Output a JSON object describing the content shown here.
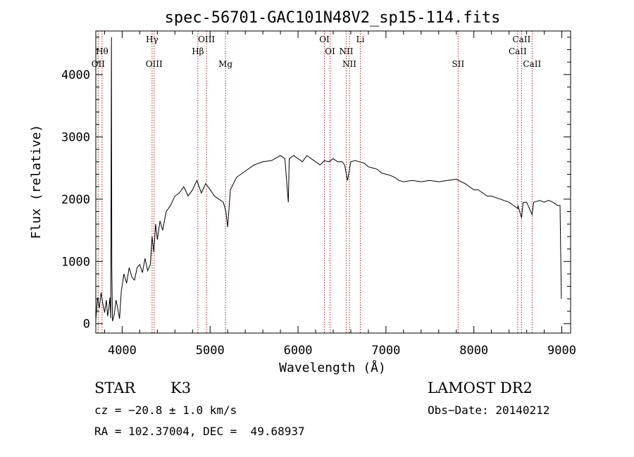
{
  "chart_data": {
    "type": "line",
    "title": "spec-56701-GAC101N48V2_sp15-114.fits",
    "xlabel": "Wavelength (Å)",
    "ylabel": "Flux (relative)",
    "xlim": [
      3700,
      9100
    ],
    "ylim": [
      -150,
      4700
    ],
    "x_ticks": [
      4000,
      5000,
      6000,
      7000,
      8000,
      9000
    ],
    "y_ticks": [
      0,
      1000,
      2000,
      3000,
      4000
    ],
    "grid": false,
    "line_color": "#000000",
    "marker_color": "#aa2222",
    "series": [
      {
        "points": [
          [
            3700,
            60
          ],
          [
            3720,
            420
          ],
          [
            3740,
            250
          ],
          [
            3760,
            500
          ],
          [
            3780,
            320
          ],
          [
            3800,
            180
          ],
          [
            3820,
            380
          ],
          [
            3835,
            120
          ],
          [
            3850,
            260
          ],
          [
            3860,
            420
          ],
          [
            3870,
            90
          ],
          [
            3878,
            4600
          ],
          [
            3882,
            900
          ],
          [
            3890,
            40
          ],
          [
            3910,
            150
          ],
          [
            3930,
            380
          ],
          [
            3950,
            240
          ],
          [
            3970,
            80
          ],
          [
            3990,
            520
          ],
          [
            4020,
            800
          ],
          [
            4050,
            650
          ],
          [
            4080,
            900
          ],
          [
            4110,
            750
          ],
          [
            4140,
            700
          ],
          [
            4170,
            900
          ],
          [
            4200,
            950
          ],
          [
            4230,
            820
          ],
          [
            4260,
            1050
          ],
          [
            4290,
            850
          ],
          [
            4320,
            950
          ],
          [
            4340,
            1400
          ],
          [
            4360,
            1150
          ],
          [
            4380,
            1600
          ],
          [
            4400,
            1350
          ],
          [
            4430,
            1650
          ],
          [
            4460,
            1500
          ],
          [
            4500,
            1800
          ],
          [
            4550,
            1900
          ],
          [
            4600,
            2050
          ],
          [
            4650,
            2100
          ],
          [
            4700,
            2200
          ],
          [
            4750,
            2050
          ],
          [
            4800,
            2150
          ],
          [
            4850,
            2300
          ],
          [
            4900,
            2100
          ],
          [
            4950,
            2250
          ],
          [
            5000,
            2150
          ],
          [
            5050,
            2050
          ],
          [
            5100,
            2000
          ],
          [
            5150,
            1950
          ],
          [
            5180,
            1800
          ],
          [
            5200,
            1550
          ],
          [
            5230,
            2150
          ],
          [
            5300,
            2350
          ],
          [
            5400,
            2450
          ],
          [
            5500,
            2550
          ],
          [
            5600,
            2600
          ],
          [
            5700,
            2620
          ],
          [
            5800,
            2700
          ],
          [
            5850,
            2650
          ],
          [
            5890,
            1950
          ],
          [
            5900,
            2650
          ],
          [
            5950,
            2700
          ],
          [
            6000,
            2650
          ],
          [
            6050,
            2600
          ],
          [
            6100,
            2700
          ],
          [
            6150,
            2650
          ],
          [
            6200,
            2600
          ],
          [
            6250,
            2550
          ],
          [
            6300,
            2620
          ],
          [
            6350,
            2600
          ],
          [
            6400,
            2650
          ],
          [
            6450,
            2600
          ],
          [
            6500,
            2600
          ],
          [
            6530,
            2550
          ],
          [
            6563,
            2300
          ],
          [
            6600,
            2600
          ],
          [
            6650,
            2620
          ],
          [
            6700,
            2600
          ],
          [
            6750,
            2580
          ],
          [
            6800,
            2520
          ],
          [
            6850,
            2500
          ],
          [
            6900,
            2480
          ],
          [
            6950,
            2420
          ],
          [
            7000,
            2400
          ],
          [
            7050,
            2380
          ],
          [
            7100,
            2350
          ],
          [
            7150,
            2300
          ],
          [
            7200,
            2280
          ],
          [
            7300,
            2300
          ],
          [
            7400,
            2280
          ],
          [
            7500,
            2300
          ],
          [
            7600,
            2280
          ],
          [
            7700,
            2300
          ],
          [
            7800,
            2320
          ],
          [
            7900,
            2250
          ],
          [
            8000,
            2150
          ],
          [
            8050,
            2150
          ],
          [
            8100,
            2100
          ],
          [
            8150,
            2050
          ],
          [
            8200,
            2050
          ],
          [
            8300,
            2000
          ],
          [
            8400,
            1950
          ],
          [
            8498,
            1850
          ],
          [
            8500,
            1900
          ],
          [
            8542,
            1700
          ],
          [
            8560,
            1950
          ],
          [
            8600,
            1950
          ],
          [
            8662,
            1750
          ],
          [
            8680,
            1950
          ],
          [
            8750,
            1980
          ],
          [
            8800,
            1950
          ],
          [
            8850,
            1980
          ],
          [
            8900,
            1950
          ],
          [
            8950,
            1900
          ],
          [
            8980,
            1900
          ],
          [
            8995,
            400
          ]
        ]
      }
    ],
    "lines": [
      {
        "wl": 3771,
        "label": "Hθ",
        "row": 1
      },
      {
        "wl": 3727,
        "label": "OII",
        "row": 2
      },
      {
        "wl": 4340,
        "label": "Hγ",
        "row": 0
      },
      {
        "wl": 4363,
        "label": "OIII",
        "row": 2
      },
      {
        "wl": 4861,
        "label": "Hβ",
        "row": 1
      },
      {
        "wl": 4959,
        "label": "OIII",
        "row": 0
      },
      {
        "wl": 5175,
        "label": "Mg",
        "row": 2
      },
      {
        "wl": 6300,
        "label": "OI",
        "row": 0
      },
      {
        "wl": 6364,
        "label": "OI",
        "row": 1
      },
      {
        "wl": 6548,
        "label": "NII",
        "row": 1
      },
      {
        "wl": 6584,
        "label": "NII",
        "row": 2
      },
      {
        "wl": 6708,
        "label": "Li",
        "row": 0
      },
      {
        "wl": 7821,
        "label": "SII",
        "row": 2
      },
      {
        "wl": 8498,
        "label": "CaII",
        "row": 1
      },
      {
        "wl": 8542,
        "label": "CaII",
        "row": 0
      },
      {
        "wl": 8662,
        "label": "CaII",
        "row": 2
      }
    ]
  },
  "info": {
    "class": "STAR",
    "subclass": "K3",
    "survey": "LAMOST DR2",
    "cz": "cz = −20.8 ± 1.0 km/s",
    "obs_date": "Obs−Date: 20140212",
    "radec": "RA = 102.37004, DEC =  49.68937"
  }
}
